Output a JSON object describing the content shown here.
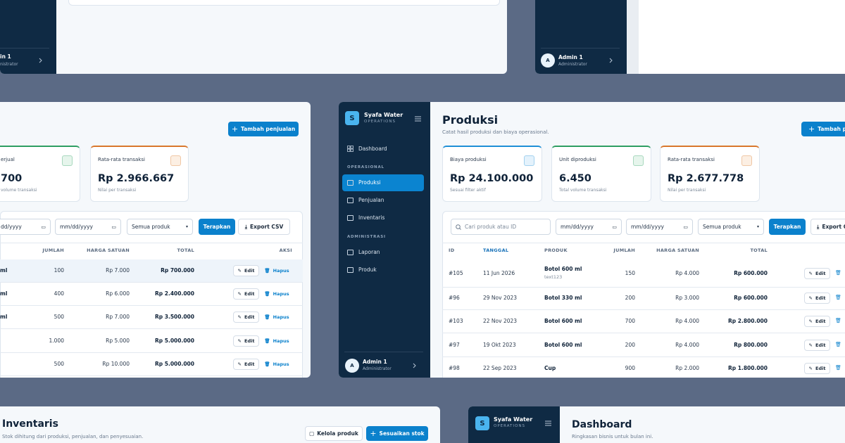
{
  "panel_top_left": {
    "user_name": "in 1",
    "user_role": "nistrator"
  },
  "panel_top_right": {
    "avatar": "A",
    "user_name": "Admin 1",
    "user_role": "Administrator"
  },
  "panel_sales": {
    "add_button": "Tambah penjualan",
    "cards": [
      {
        "label": "erjual",
        "value": "700",
        "note": "volume transaksi"
      },
      {
        "label": "Rata-rata transaksi",
        "value": "Rp 2.966.667",
        "note": "Nilai per transaksi"
      }
    ],
    "filters": {
      "date_from": "dd/yyyy",
      "date_to": "mm/dd/yyyy",
      "product": "Semua produk",
      "apply": "Terapkan",
      "export": "Export CSV"
    },
    "table": {
      "headers": [
        "JUMLAH",
        "HARGA SATUAN",
        "TOTAL",
        "AKSI"
      ],
      "edit": "Edit",
      "delete": "Hapus",
      "rows": [
        {
          "product": "ml",
          "qty": "100",
          "price": "Rp 7.000",
          "total": "Rp 700.000"
        },
        {
          "product": "ml",
          "qty": "400",
          "price": "Rp 6.000",
          "total": "Rp 2.400.000"
        },
        {
          "product": "ml",
          "qty": "500",
          "price": "Rp 7.000",
          "total": "Rp 3.500.000"
        },
        {
          "qty": "1.000",
          "price": "Rp 5.000",
          "total": "Rp 5.000.000"
        },
        {
          "qty": "500",
          "price": "Rp 10.000",
          "total": "Rp 5.000.000"
        }
      ]
    }
  },
  "panel_production": {
    "sidebar": {
      "logo": "S",
      "brand": "Syafa Water",
      "brand_sub": "OPERATIONS",
      "dashboard": "Dashboard",
      "sections": [
        {
          "title": "OPERASIONAL",
          "items": [
            "Produksi",
            "Penjualan",
            "Inventaris"
          ]
        },
        {
          "title": "ADMINISTRASI",
          "items": [
            "Laporan",
            "Produk"
          ]
        }
      ],
      "avatar": "A",
      "user_name": "Admin 1",
      "user_role": "Administrator"
    },
    "title": "Produksi",
    "subtitle": "Catat hasil produksi dan biaya operasional.",
    "add_button": "Tambah p",
    "cards": [
      {
        "label": "Biaya produksi",
        "value": "Rp 24.100.000",
        "note": "Sesuai filter aktif"
      },
      {
        "label": "Unit diproduksi",
        "value": "6.450",
        "note": "Total volume transaksi"
      },
      {
        "label": "Rata-rata transaksi",
        "value": "Rp 2.677.778",
        "note": "Nilai per transaksi"
      }
    ],
    "filters": {
      "search": "Cari produk atau ID",
      "date_from": "mm/dd/yyyy",
      "date_to": "mm/dd/yyyy",
      "product": "Semua produk",
      "apply": "Terapkan",
      "export": "Export C"
    },
    "table": {
      "headers": [
        "ID",
        "TANGGAL",
        "PRODUK",
        "JUMLAH",
        "HARGA SATUAN",
        "TOTAL"
      ],
      "edit": "Edit",
      "rows": [
        {
          "id": "#105",
          "date": "11 Jun 2026",
          "product": "Botol 600 ml",
          "note": "text123",
          "qty": "150",
          "price": "Rp 4.000",
          "total": "Rp 600.000"
        },
        {
          "id": "#96",
          "date": "29 Nov 2023",
          "product": "Botol 330 ml",
          "qty": "200",
          "price": "Rp 3.000",
          "total": "Rp 600.000"
        },
        {
          "id": "#103",
          "date": "22 Nov 2023",
          "product": "Botol 600 ml",
          "qty": "700",
          "price": "Rp 4.000",
          "total": "Rp 2.800.000"
        },
        {
          "id": "#97",
          "date": "19 Okt 2023",
          "product": "Botol 600 ml",
          "qty": "200",
          "price": "Rp 4.000",
          "total": "Rp 800.000"
        },
        {
          "id": "#98",
          "date": "22 Sep 2023",
          "product": "Cup",
          "qty": "900",
          "price": "Rp 2.000",
          "total": "Rp 1.800.000"
        }
      ]
    }
  },
  "panel_inventory": {
    "title": "Inventaris",
    "subtitle": "Stok dihitung dari produksi, penjualan, dan penyesuaian.",
    "manage_button": "Kelola produk",
    "adjust_button": "Sesuaikan stok"
  },
  "panel_dashboard": {
    "logo": "S",
    "brand": "Syafa Water",
    "brand_sub": "OPERATIONS",
    "title": "Dashboard",
    "subtitle": "Ringkasan bisnis untuk bulan ini."
  }
}
